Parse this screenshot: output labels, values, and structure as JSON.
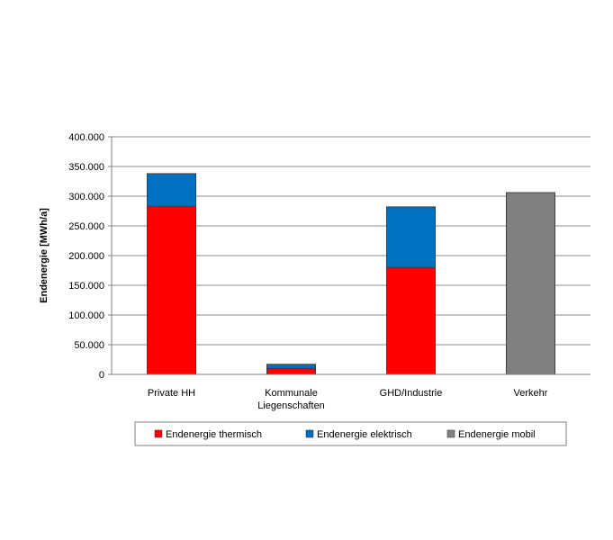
{
  "chart_data": {
    "type": "bar",
    "stacked": true,
    "title": "",
    "xlabel": "",
    "ylabel": "Endenergie [MWh/a]",
    "ylim": [
      0,
      400000
    ],
    "ytick_step": 50000,
    "ytick_labels": [
      "0",
      "50.000",
      "100.000",
      "150.000",
      "200.000",
      "250.000",
      "300.000",
      "350.000",
      "400.000"
    ],
    "grid": true,
    "legend_position": "bottom",
    "categories": [
      [
        "Private HH"
      ],
      [
        "Kommunale",
        "Liegenschaften"
      ],
      [
        "GHD/Industrie"
      ],
      [
        "Verkehr"
      ]
    ],
    "series": [
      {
        "name": "Endenergie thermisch",
        "color": "#ff0000",
        "values": [
          283000,
          10000,
          180000,
          0
        ]
      },
      {
        "name": "Endenergie elektrisch",
        "color": "#0070c0",
        "values": [
          55000,
          7000,
          102000,
          0
        ]
      },
      {
        "name": "Endenergie mobil",
        "color": "#808080",
        "values": [
          0,
          0,
          0,
          306000
        ]
      }
    ]
  }
}
